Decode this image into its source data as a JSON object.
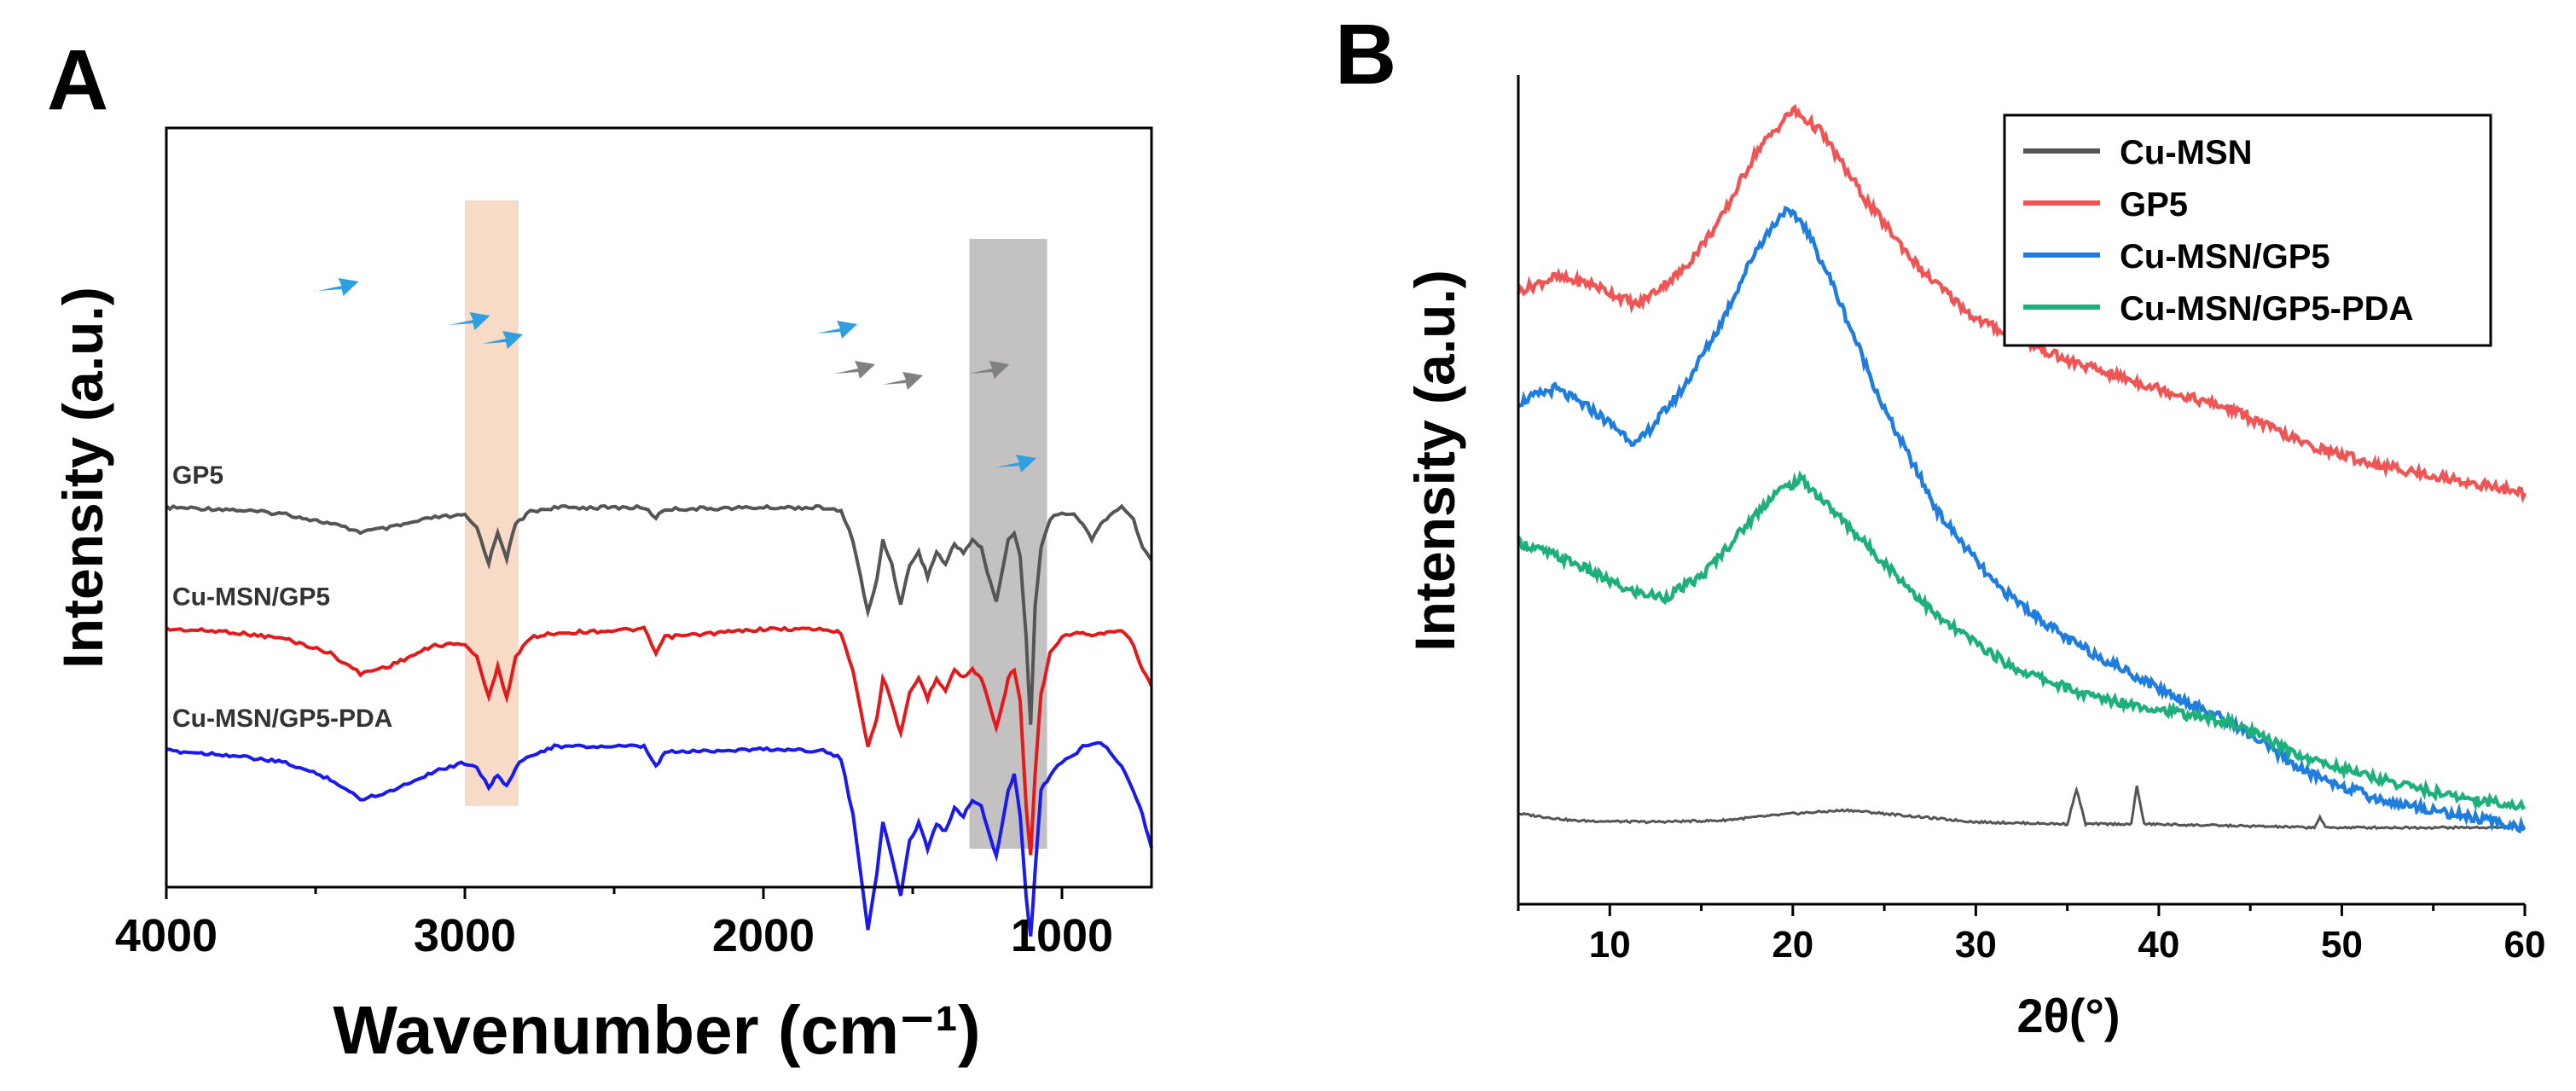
{
  "panels": {
    "a": {
      "letter": "A"
    },
    "b": {
      "letter": "B"
    }
  },
  "chart_data": [
    {
      "type": "line",
      "panel": "A",
      "xlabel": "Wavenumber (cm⁻¹)",
      "ylabel": "Intensity (a.u.)",
      "xlim": [
        4000,
        700
      ],
      "x_reversed": true,
      "y_ticks": false,
      "x_ticks": [
        4000,
        3000,
        2000,
        1000
      ],
      "highlight_bands": [
        {
          "range": [
            3000,
            2820
          ],
          "color": "#f6d5bd"
        },
        {
          "range": [
            1310,
            1050
          ],
          "color": "#b9b6b6"
        }
      ],
      "series": [
        {
          "name": "GP5",
          "color": "#555555",
          "offset": 3.0,
          "points": [
            [
              4000,
              0
            ],
            [
              3800,
              -0.02
            ],
            [
              3600,
              -0.08
            ],
            [
              3450,
              -0.2
            ],
            [
              3350,
              -0.3
            ],
            [
              3250,
              -0.25
            ],
            [
              3100,
              -0.12
            ],
            [
              3000,
              -0.1
            ],
            [
              2960,
              -0.25
            ],
            [
              2920,
              -0.68
            ],
            [
              2890,
              -0.3
            ],
            [
              2860,
              -0.62
            ],
            [
              2830,
              -0.2
            ],
            [
              2780,
              -0.05
            ],
            [
              2700,
              0
            ],
            [
              2400,
              0
            ],
            [
              2360,
              -0.12
            ],
            [
              2330,
              -0.02
            ],
            [
              2000,
              0
            ],
            [
              1800,
              0
            ],
            [
              1740,
              -0.05
            ],
            [
              1700,
              -0.4
            ],
            [
              1650,
              -1.3
            ],
            [
              1620,
              -0.9
            ],
            [
              1600,
              -0.4
            ],
            [
              1570,
              -0.7
            ],
            [
              1540,
              -1.2
            ],
            [
              1510,
              -0.7
            ],
            [
              1480,
              -0.55
            ],
            [
              1450,
              -0.85
            ],
            [
              1420,
              -0.55
            ],
            [
              1390,
              -0.7
            ],
            [
              1360,
              -0.45
            ],
            [
              1330,
              -0.55
            ],
            [
              1300,
              -0.4
            ],
            [
              1270,
              -0.5
            ],
            [
              1250,
              -0.8
            ],
            [
              1220,
              -1.15
            ],
            [
              1200,
              -0.8
            ],
            [
              1180,
              -0.4
            ],
            [
              1160,
              -0.3
            ],
            [
              1140,
              -0.6
            ],
            [
              1120,
              -1.6
            ],
            [
              1105,
              -2.7
            ],
            [
              1090,
              -1.2
            ],
            [
              1070,
              -0.5
            ],
            [
              1040,
              -0.15
            ],
            [
              1000,
              -0.05
            ],
            [
              960,
              -0.1
            ],
            [
              930,
              -0.2
            ],
            [
              900,
              -0.4
            ],
            [
              870,
              -0.2
            ],
            [
              840,
              -0.1
            ],
            [
              800,
              0
            ],
            [
              760,
              -0.15
            ],
            [
              730,
              -0.5
            ],
            [
              700,
              -0.65
            ]
          ]
        },
        {
          "name": "Cu-MSN/GP5",
          "color": "#e31a1c",
          "offset": 1.5,
          "points": [
            [
              4000,
              0
            ],
            [
              3800,
              -0.03
            ],
            [
              3600,
              -0.12
            ],
            [
              3450,
              -0.3
            ],
            [
              3350,
              -0.55
            ],
            [
              3250,
              -0.45
            ],
            [
              3100,
              -0.2
            ],
            [
              3000,
              -0.18
            ],
            [
              2960,
              -0.35
            ],
            [
              2920,
              -0.85
            ],
            [
              2890,
              -0.45
            ],
            [
              2860,
              -0.85
            ],
            [
              2830,
              -0.35
            ],
            [
              2780,
              -0.1
            ],
            [
              2700,
              -0.05
            ],
            [
              2400,
              0
            ],
            [
              2360,
              -0.3
            ],
            [
              2330,
              -0.1
            ],
            [
              2000,
              0
            ],
            [
              1800,
              0
            ],
            [
              1740,
              -0.05
            ],
            [
              1700,
              -0.5
            ],
            [
              1650,
              -1.45
            ],
            [
              1620,
              -1.1
            ],
            [
              1600,
              -0.6
            ],
            [
              1570,
              -0.9
            ],
            [
              1540,
              -1.3
            ],
            [
              1510,
              -0.8
            ],
            [
              1480,
              -0.6
            ],
            [
              1450,
              -0.85
            ],
            [
              1420,
              -0.6
            ],
            [
              1390,
              -0.75
            ],
            [
              1360,
              -0.5
            ],
            [
              1330,
              -0.6
            ],
            [
              1300,
              -0.5
            ],
            [
              1270,
              -0.6
            ],
            [
              1250,
              -0.85
            ],
            [
              1220,
              -1.2
            ],
            [
              1200,
              -0.95
            ],
            [
              1180,
              -0.6
            ],
            [
              1160,
              -0.5
            ],
            [
              1140,
              -0.9
            ],
            [
              1120,
              -2.2
            ],
            [
              1105,
              -2.8
            ],
            [
              1090,
              -1.8
            ],
            [
              1070,
              -0.8
            ],
            [
              1040,
              -0.3
            ],
            [
              1000,
              -0.1
            ],
            [
              960,
              -0.05
            ],
            [
              930,
              -0.05
            ],
            [
              900,
              -0.1
            ],
            [
              870,
              -0.05
            ],
            [
              840,
              -0.05
            ],
            [
              800,
              0
            ],
            [
              760,
              -0.2
            ],
            [
              730,
              -0.5
            ],
            [
              700,
              -0.7
            ]
          ]
        },
        {
          "name": "Cu-MSN/GP5-PDA",
          "color": "#1a1aee",
          "offset": 0.0,
          "points": [
            [
              4000,
              0
            ],
            [
              3800,
              -0.05
            ],
            [
              3600,
              -0.15
            ],
            [
              3450,
              -0.35
            ],
            [
              3350,
              -0.6
            ],
            [
              3250,
              -0.5
            ],
            [
              3100,
              -0.25
            ],
            [
              3000,
              -0.15
            ],
            [
              2960,
              -0.2
            ],
            [
              2920,
              -0.45
            ],
            [
              2890,
              -0.3
            ],
            [
              2860,
              -0.45
            ],
            [
              2830,
              -0.2
            ],
            [
              2780,
              -0.05
            ],
            [
              2700,
              0.05
            ],
            [
              2400,
              0.05
            ],
            [
              2360,
              -0.2
            ],
            [
              2330,
              -0.02
            ],
            [
              2000,
              0.02
            ],
            [
              1800,
              0
            ],
            [
              1740,
              -0.1
            ],
            [
              1700,
              -0.8
            ],
            [
              1650,
              -2.2
            ],
            [
              1620,
              -1.5
            ],
            [
              1600,
              -0.9
            ],
            [
              1570,
              -1.3
            ],
            [
              1540,
              -1.8
            ],
            [
              1510,
              -1.1
            ],
            [
              1480,
              -0.9
            ],
            [
              1450,
              -1.2
            ],
            [
              1420,
              -0.9
            ],
            [
              1390,
              -1.0
            ],
            [
              1360,
              -0.7
            ],
            [
              1330,
              -0.8
            ],
            [
              1300,
              -0.6
            ],
            [
              1270,
              -0.7
            ],
            [
              1250,
              -0.95
            ],
            [
              1220,
              -1.3
            ],
            [
              1200,
              -0.9
            ],
            [
              1180,
              -0.5
            ],
            [
              1160,
              -0.3
            ],
            [
              1140,
              -0.8
            ],
            [
              1120,
              -1.8
            ],
            [
              1105,
              -2.3
            ],
            [
              1090,
              -1.5
            ],
            [
              1070,
              -0.5
            ],
            [
              1040,
              -0.3
            ],
            [
              1000,
              -0.15
            ],
            [
              960,
              -0.05
            ],
            [
              930,
              0.05
            ],
            [
              900,
              0.1
            ],
            [
              870,
              0.1
            ],
            [
              840,
              0
            ],
            [
              800,
              -0.2
            ],
            [
              760,
              -0.5
            ],
            [
              730,
              -0.8
            ],
            [
              700,
              -1.2
            ]
          ]
        }
      ],
      "annotations": [
        {
          "label": "GP5",
          "x": 3980,
          "series": "GP5"
        },
        {
          "label": "Cu-MSN/GP5",
          "x": 3980,
          "series": "Cu-MSN/GP5"
        },
        {
          "label": "Cu-MSN/GP5-PDA",
          "x": 3980,
          "series": "Cu-MSN/GP5-PDA"
        }
      ],
      "arrows": [
        {
          "x": 3430,
          "series": "GP5",
          "color": "#2f9fe0"
        },
        {
          "x": 2990,
          "series": "GP5",
          "color": "#2f9fe0"
        },
        {
          "x": 2880,
          "series": "GP5",
          "color": "#2f9fe0"
        },
        {
          "x": 1760,
          "series": "GP5",
          "color": "#2f9fe0"
        },
        {
          "x": 1700,
          "series": "GP5",
          "color": "#808080"
        },
        {
          "x": 1540,
          "series": "GP5",
          "color": "#808080"
        },
        {
          "x": 1250,
          "series": "GP5",
          "color": "#808080"
        },
        {
          "x": 1160,
          "series": "GP5",
          "color": "#2f9fe0"
        }
      ]
    },
    {
      "type": "line",
      "panel": "B",
      "xlabel": "2θ(°)",
      "ylabel": "Intensity (a.u.)",
      "xlim": [
        5,
        60
      ],
      "y_ticks": false,
      "x_ticks": [
        10,
        20,
        30,
        40,
        50,
        60
      ],
      "legend_position": "top-right",
      "series": [
        {
          "name": "Cu-MSN",
          "color": "#555555",
          "offset": 0.0,
          "points": [
            [
              5,
              0.2
            ],
            [
              8,
              0.1
            ],
            [
              12,
              0.08
            ],
            [
              16,
              0.1
            ],
            [
              20,
              0.2
            ],
            [
              23,
              0.25
            ],
            [
              27,
              0.15
            ],
            [
              30,
              0.08
            ],
            [
              35,
              0.05
            ],
            [
              35.5,
              0.55
            ],
            [
              36,
              0.05
            ],
            [
              38.5,
              0.05
            ],
            [
              38.8,
              0.6
            ],
            [
              39.2,
              0.05
            ],
            [
              45,
              0.02
            ],
            [
              48.5,
              0.0
            ],
            [
              48.8,
              0.15
            ],
            [
              49.1,
              0.0
            ],
            [
              55,
              0.0
            ],
            [
              60,
              0.0
            ]
          ]
        },
        {
          "name": "GP5",
          "color": "#f05555",
          "offset": 0.0,
          "points": [
            [
              5,
              7.7
            ],
            [
              7,
              7.9
            ],
            [
              9,
              7.8
            ],
            [
              11.5,
              7.5
            ],
            [
              14,
              8.0
            ],
            [
              16,
              8.7
            ],
            [
              18,
              9.7
            ],
            [
              20,
              10.3
            ],
            [
              21.5,
              10.0
            ],
            [
              24,
              9.0
            ],
            [
              27,
              8.0
            ],
            [
              30,
              7.3
            ],
            [
              35,
              6.7
            ],
            [
              40,
              6.3
            ],
            [
              44,
              6.0
            ],
            [
              48,
              5.5
            ],
            [
              52,
              5.2
            ],
            [
              56,
              5.0
            ],
            [
              60,
              4.8
            ]
          ]
        },
        {
          "name": "Cu-MSN/GP5",
          "color": "#1f7de0",
          "offset": 0.0,
          "points": [
            [
              5,
              6.1
            ],
            [
              7,
              6.3
            ],
            [
              9,
              6.0
            ],
            [
              11.5,
              5.5
            ],
            [
              14,
              6.3
            ],
            [
              16,
              7.2
            ],
            [
              18,
              8.3
            ],
            [
              19.5,
              8.85
            ],
            [
              20.5,
              8.7
            ],
            [
              22,
              7.9
            ],
            [
              25,
              6.0
            ],
            [
              28,
              4.5
            ],
            [
              31,
              3.5
            ],
            [
              35,
              2.7
            ],
            [
              40,
              2.0
            ],
            [
              44,
              1.5
            ],
            [
              48,
              0.8
            ],
            [
              52,
              0.4
            ],
            [
              56,
              0.2
            ],
            [
              60,
              0.0
            ]
          ]
        },
        {
          "name": "Cu-MSN/GP5-PDA",
          "color": "#1db07a",
          "offset": 0.0,
          "points": [
            [
              5,
              4.1
            ],
            [
              8,
              3.8
            ],
            [
              11,
              3.4
            ],
            [
              13,
              3.3
            ],
            [
              15,
              3.6
            ],
            [
              17,
              4.2
            ],
            [
              19,
              4.8
            ],
            [
              20.5,
              5.0
            ],
            [
              22,
              4.6
            ],
            [
              25,
              3.8
            ],
            [
              28,
              3.0
            ],
            [
              32,
              2.3
            ],
            [
              36,
              1.9
            ],
            [
              40,
              1.7
            ],
            [
              44,
              1.5
            ],
            [
              48,
              1.0
            ],
            [
              52,
              0.7
            ],
            [
              56,
              0.45
            ],
            [
              60,
              0.3
            ]
          ]
        }
      ]
    }
  ]
}
